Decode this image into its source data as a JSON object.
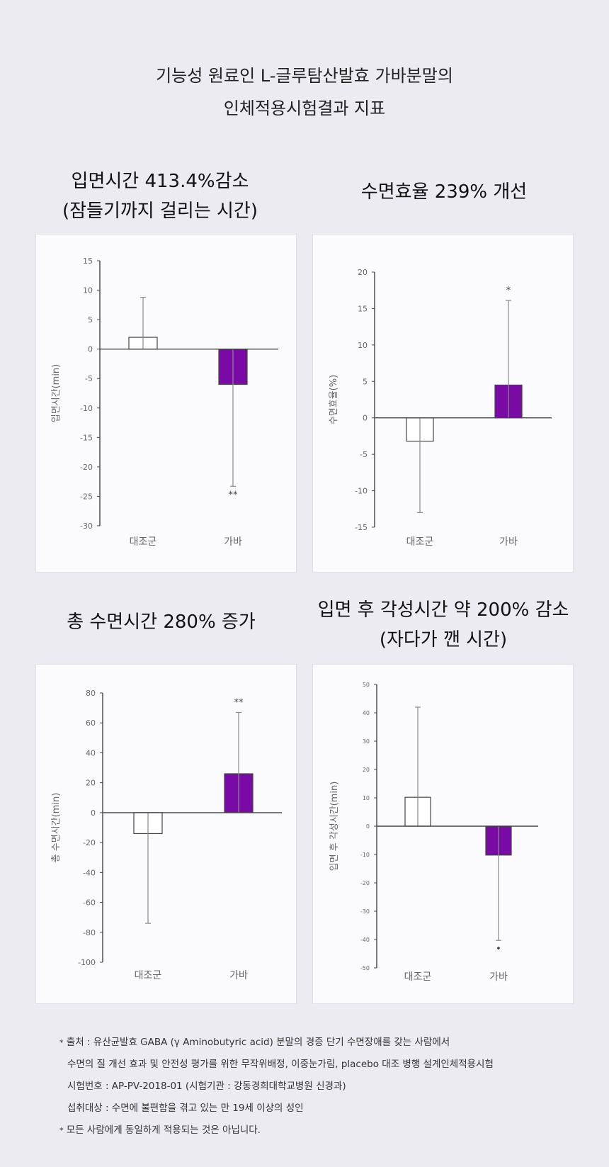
{
  "header": {
    "title_line1": "기능성 원료인 L-글루탐산발효 가바분말의",
    "title_line2": "인체적용시험결과 지표"
  },
  "colors": {
    "gaba": "#7a0aa6",
    "control": "#ffffff",
    "axis": "#444444",
    "error_bar": "#8a8a8a"
  },
  "chart_data": [
    {
      "type": "bar",
      "title_line1": "입면시간 413.4%감소",
      "title_line2": "(잠들기까지 걸리는 시간)",
      "ylabel": "입면시간(min)",
      "categories": [
        "대조군",
        "가바"
      ],
      "values": [
        2.0,
        -6.0
      ],
      "error_upper": [
        8.8,
        0
      ],
      "error_lower": [
        2.0,
        -23.3
      ],
      "significance": [
        "",
        "**"
      ],
      "ylim": [
        -30,
        15
      ],
      "yticks": [
        15,
        10,
        5,
        0,
        -5,
        -10,
        -15,
        -20,
        -25,
        -30
      ]
    },
    {
      "type": "bar",
      "title_line1": "수면효율 239% 개선",
      "title_line2": "",
      "ylabel": "수면효율(%)",
      "categories": [
        "대조군",
        "가바"
      ],
      "values": [
        -3.2,
        4.5
      ],
      "error_upper": [
        0,
        16.1
      ],
      "error_lower": [
        -13.0,
        0
      ],
      "significance": [
        "",
        "*"
      ],
      "ylim": [
        -15,
        20
      ],
      "yticks": [
        20,
        15,
        10,
        5,
        0,
        -5,
        -10,
        -15
      ]
    },
    {
      "type": "bar",
      "title_line1": "총 수면시간 280% 증가",
      "title_line2": "",
      "ylabel": "총 수면시간(min)",
      "categories": [
        "대조군",
        "가바"
      ],
      "values": [
        -14,
        26
      ],
      "error_upper": [
        0,
        67
      ],
      "error_lower": [
        -74,
        0
      ],
      "significance": [
        "",
        "**"
      ],
      "ylim": [
        -100,
        80
      ],
      "yticks": [
        80,
        60,
        40,
        20,
        0,
        -20,
        -40,
        -60,
        -80,
        -100
      ]
    },
    {
      "type": "bar",
      "title_line1": "입면 후 각성시간 약 200% 감소",
      "title_line2": "(자다가 깬 시간)",
      "ylabel": "입면 후 각성시간(min)",
      "categories": [
        "대조군",
        "가바"
      ],
      "values": [
        10.2,
        -10.2
      ],
      "error_upper": [
        42,
        0
      ],
      "error_lower": [
        0,
        -40.3
      ],
      "significance": [
        "",
        "•"
      ],
      "ylim": [
        -50,
        50
      ],
      "yticks": [
        50,
        40,
        30,
        20,
        10,
        0,
        -10,
        -20,
        -30,
        -40,
        -50
      ]
    }
  ],
  "footnote": {
    "mark": "*",
    "line1": "출처 : 유산균발효 GABA (γ Aminobutyric acid) 분말의 경증 단기 수면장애를 갖는 사람에서",
    "line2": "수면의 질 개선 효과 및 안전성 평가를 위한 무작위배정, 이중눈가림, placebo 대조 병행 설계인체적용시험",
    "line3": "시험번호 : AP-PV-2018-01 (시험기관 : 강동경희대학교병원 신경과)",
    "line4": "섭취대상 : 수면에 불편함을 겪고 있는 만 19세 이상의 성인",
    "line5": "모든 사람에게 동일하게 적용되는 것은 아닙니다."
  }
}
